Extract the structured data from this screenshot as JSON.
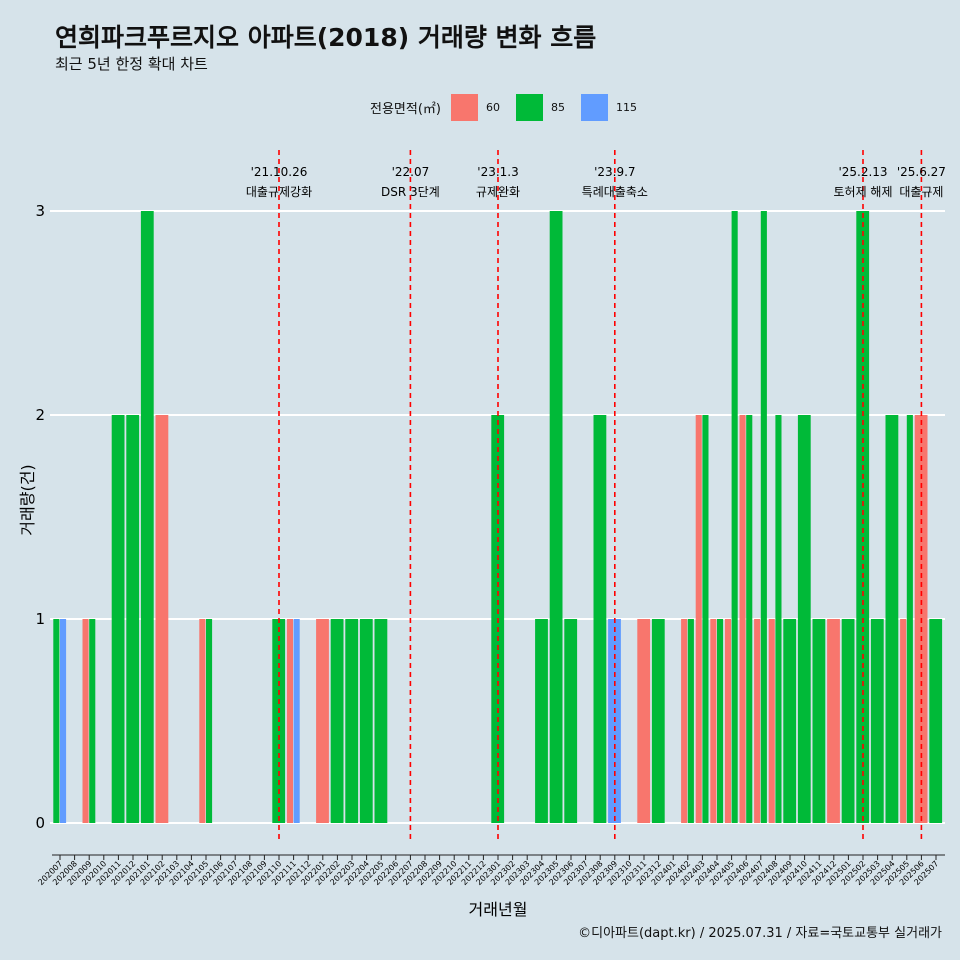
{
  "chart_data": {
    "type": "bar",
    "title": "연희파크푸르지오 아파트(2018) 거래량 변화 흐름",
    "subtitle": "최근 5년 한정 확대 차트",
    "xlabel": "거래년월",
    "ylabel": "거래량(건)",
    "caption": "©디아파트(dapt.kr) / 2025.07.31 / 자료=국토교통부 실거래가",
    "ylim": [
      0,
      3
    ],
    "yticks": [
      0,
      1,
      2,
      3
    ],
    "grid": true,
    "legend": {
      "title": "전용면적(㎡)",
      "placement": "top"
    },
    "categories": [
      "202007",
      "202008",
      "202009",
      "202010",
      "202011",
      "202012",
      "202101",
      "202102",
      "202103",
      "202104",
      "202105",
      "202106",
      "202107",
      "202108",
      "202109",
      "202110",
      "202111",
      "202112",
      "202201",
      "202202",
      "202203",
      "202204",
      "202205",
      "202206",
      "202207",
      "202208",
      "202209",
      "202210",
      "202211",
      "202212",
      "202301",
      "202302",
      "202303",
      "202304",
      "202305",
      "202306",
      "202307",
      "202308",
      "202309",
      "202310",
      "202311",
      "202312",
      "202401",
      "202402",
      "202403",
      "202404",
      "202405",
      "202406",
      "202407",
      "202408",
      "202409",
      "202410",
      "202411",
      "202412",
      "202501",
      "202502",
      "202503",
      "202504",
      "202505",
      "202506",
      "202507"
    ],
    "series": [
      {
        "name": "60",
        "color": "#f8766d",
        "values": [
          0,
          0,
          1,
          0,
          0,
          0,
          0,
          2,
          0,
          0,
          1,
          0,
          0,
          0,
          0,
          0,
          1,
          0,
          1,
          0,
          0,
          0,
          0,
          0,
          0,
          0,
          0,
          0,
          0,
          0,
          0,
          0,
          0,
          0,
          0,
          0,
          0,
          0,
          0,
          0,
          1,
          0,
          0,
          1,
          2,
          1,
          1,
          2,
          1,
          1,
          0,
          0,
          0,
          1,
          0,
          0,
          0,
          0,
          1,
          2,
          0
        ]
      },
      {
        "name": "85",
        "color": "#00ba38",
        "values": [
          1,
          0,
          1,
          0,
          2,
          2,
          3,
          0,
          0,
          0,
          1,
          0,
          0,
          0,
          0,
          1,
          0,
          0,
          0,
          1,
          1,
          1,
          1,
          0,
          0,
          0,
          0,
          0,
          0,
          0,
          2,
          0,
          0,
          1,
          3,
          1,
          0,
          2,
          0,
          0,
          0,
          1,
          0,
          1,
          2,
          1,
          3,
          2,
          3,
          2,
          1,
          2,
          1,
          0,
          1,
          3,
          1,
          2,
          2,
          0,
          1
        ]
      },
      {
        "name": "115",
        "color": "#619cff",
        "values": [
          1,
          0,
          0,
          0,
          0,
          0,
          0,
          0,
          0,
          0,
          0,
          0,
          0,
          0,
          0,
          0,
          1,
          0,
          0,
          0,
          0,
          0,
          0,
          0,
          0,
          0,
          0,
          0,
          0,
          0,
          0,
          0,
          0,
          0,
          0,
          0,
          0,
          0,
          1,
          0,
          0,
          0,
          0,
          0,
          0,
          0,
          0,
          0,
          0,
          0,
          0,
          0,
          0,
          0,
          0,
          0,
          0,
          0,
          0,
          0,
          0
        ]
      }
    ],
    "annotations": [
      {
        "date_label": "'21.10.26",
        "label": "대출규제강화",
        "x": "202110",
        "color": "#ff0000"
      },
      {
        "date_label": "'22.07",
        "label": "DSR 3단계",
        "x": "202207",
        "color": "#ff0000"
      },
      {
        "date_label": "'23.1.3",
        "label": "규제완화",
        "x": "202301",
        "color": "#ff0000"
      },
      {
        "date_label": "'23.9.7",
        "label": "특례대출축소",
        "x": "202309",
        "color": "#ff0000"
      },
      {
        "date_label": "'25.2.13",
        "label": "토허제 해제",
        "x": "202502",
        "color": "#ff0000"
      },
      {
        "date_label": "'25.6.27",
        "label": "대출규제",
        "x": "202506",
        "color": "#ff0000"
      }
    ]
  }
}
